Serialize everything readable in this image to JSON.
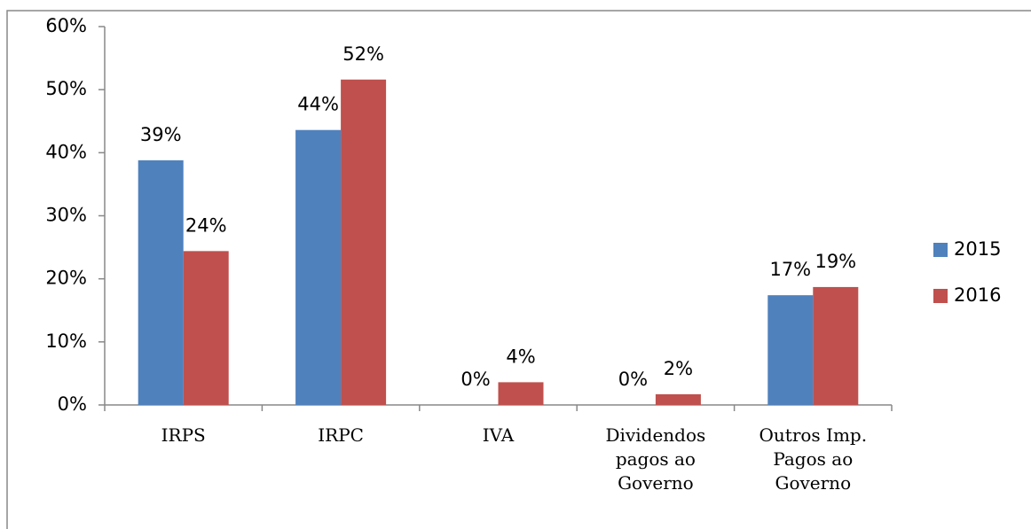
{
  "chart_data": {
    "type": "bar",
    "categories": [
      "IRPS",
      "IRPC",
      "IVA",
      "Dividendos\npagos ao\nGoverno",
      "Outros Imp.\nPagos ao\nGoverno"
    ],
    "series": [
      {
        "name": "2015",
        "color": "#4f81bd",
        "values": [
          38.8,
          43.6,
          0,
          0,
          17.4
        ],
        "value_labels": [
          "39%",
          "44%",
          "0%",
          "0%",
          "17%"
        ]
      },
      {
        "name": "2016",
        "color": "#c0504d",
        "values": [
          24.4,
          51.6,
          3.6,
          1.7,
          18.7
        ],
        "value_labels": [
          "24%",
          "52%",
          "4%",
          "2%",
          "19%"
        ]
      }
    ],
    "ylim": [
      0,
      60
    ],
    "yticks": [
      {
        "value": 0,
        "label": "0%"
      },
      {
        "value": 10,
        "label": "10%"
      },
      {
        "value": 20,
        "label": "20%"
      },
      {
        "value": 30,
        "label": "30%"
      },
      {
        "value": 40,
        "label": "40%"
      },
      {
        "value": 50,
        "label": "50%"
      },
      {
        "value": 60,
        "label": "60%"
      }
    ],
    "legend": "right"
  }
}
